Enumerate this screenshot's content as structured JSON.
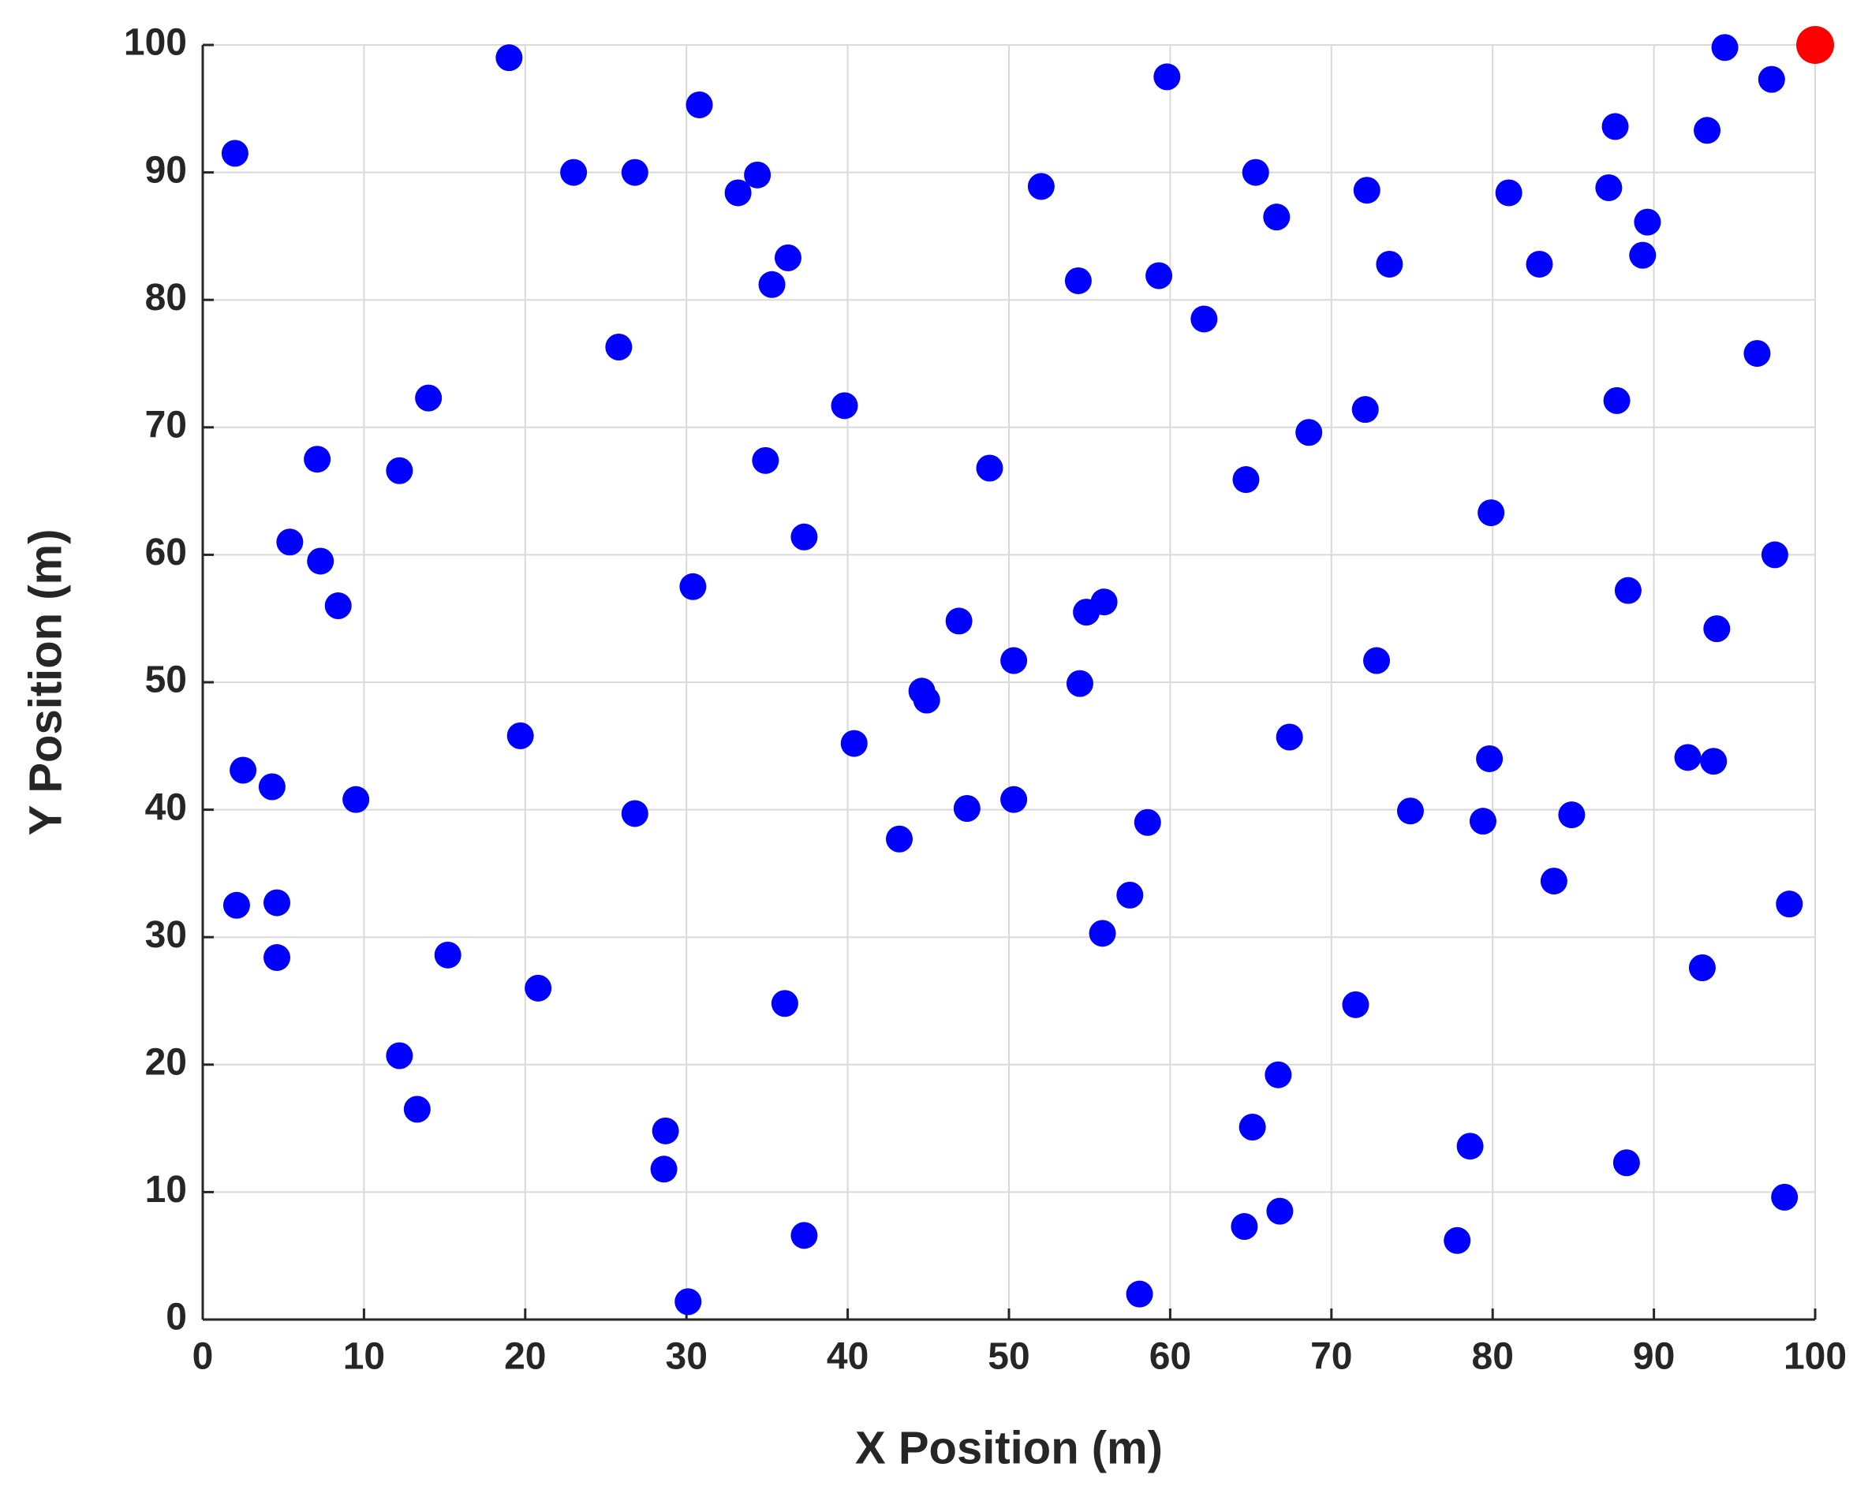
{
  "chart_data": {
    "type": "scatter",
    "xlabel": "X Position (m)",
    "ylabel": "Y Position (m)",
    "xlim": [
      0,
      100
    ],
    "ylim": [
      0,
      100
    ],
    "xticks": [
      0,
      10,
      20,
      30,
      40,
      50,
      60,
      70,
      80,
      90,
      100
    ],
    "yticks": [
      0,
      10,
      20,
      30,
      40,
      50,
      60,
      70,
      80,
      90,
      100
    ],
    "grid": true,
    "series": [
      {
        "color": "#0000ff",
        "x": [
          2,
          19,
          30.8,
          23,
          26.8,
          33.2,
          34.4,
          36.3,
          35.3,
          25.8,
          14,
          12.2,
          7.1,
          39.8,
          34.9,
          37.3,
          5.4,
          7.3,
          8.4,
          30.4,
          19.7,
          2.5,
          4.3,
          9.5,
          26.8,
          40.4,
          2.1,
          4.6,
          4.6,
          15.2,
          20.8,
          12.2,
          13.3,
          36.1,
          28.7,
          28.6,
          37.3,
          30.1,
          59.8,
          52,
          54.3,
          59.3,
          62.1,
          65.3,
          66.6,
          72.2,
          73.6,
          72.1,
          68.6,
          64.7,
          48.8,
          46.9,
          50.3,
          54.8,
          55.9,
          54.4,
          44.6,
          44.9,
          47.4,
          50.3,
          43.2,
          58.6,
          57.5,
          55.8,
          67.4,
          72.8,
          74.9,
          71.5,
          66.7,
          65.1,
          66.8,
          64.6,
          58.1,
          94.4,
          97.3,
          87.6,
          93.3,
          81,
          87.2,
          89.6,
          82.9,
          89.3,
          96.4,
          87.7,
          79.9,
          97.5,
          88.4,
          93.9,
          79.8,
          92.1,
          93.7,
          84.9,
          79.4,
          83.8,
          98.4,
          93,
          78.6,
          88.3,
          98.1,
          77.8
        ],
        "values": [
          91.5,
          99,
          95.3,
          90,
          90,
          88.4,
          89.8,
          83.3,
          81.2,
          76.3,
          72.3,
          66.6,
          67.5,
          71.7,
          67.4,
          61.4,
          61,
          59.5,
          56,
          57.5,
          45.8,
          43.1,
          41.8,
          40.8,
          39.7,
          45.2,
          32.5,
          32.7,
          28.4,
          28.6,
          26,
          20.7,
          16.5,
          24.8,
          14.8,
          11.8,
          6.6,
          1.4,
          97.5,
          88.9,
          81.5,
          81.9,
          78.5,
          90,
          86.5,
          88.6,
          82.8,
          71.4,
          69.6,
          65.9,
          66.8,
          54.8,
          51.7,
          55.5,
          56.3,
          49.9,
          49.3,
          48.6,
          40.1,
          40.8,
          37.7,
          39,
          33.3,
          30.3,
          45.7,
          51.7,
          39.9,
          24.7,
          19.2,
          15.1,
          8.5,
          7.3,
          2,
          99.8,
          97.3,
          93.6,
          93.3,
          88.4,
          88.8,
          86.1,
          82.8,
          83.5,
          75.8,
          72.1,
          63.3,
          60,
          57.2,
          54.2,
          44,
          44.1,
          43.8,
          39.6,
          39.1,
          34.4,
          32.6,
          27.6,
          13.6,
          12.3,
          9.6,
          6.2
        ]
      },
      {
        "color": "#ff0000",
        "x": [
          100
        ],
        "values": [
          100
        ]
      }
    ]
  }
}
